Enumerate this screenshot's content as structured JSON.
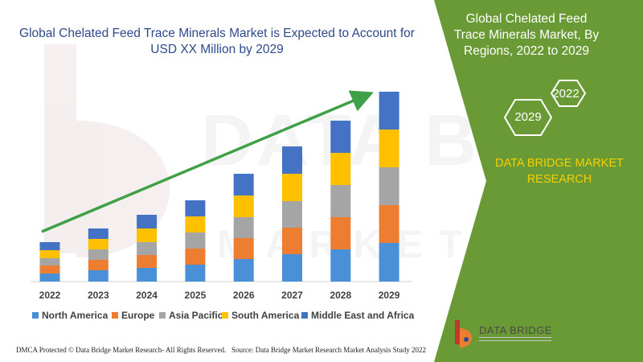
{
  "header": {
    "title": "Global Chelated Feed Trace Minerals Market is Expected to Account for USD XX Million by 2029"
  },
  "right_panel": {
    "title": "Global Chelated Feed Trace Minerals Market, By Regions, 2022 to 2029",
    "hex_labels": [
      "2022",
      "2029"
    ],
    "company": "DATA BRIDGE MARKET RESEARCH",
    "panel_color": "#6a9a36",
    "company_color": "#f5d000"
  },
  "logo": {
    "text": "DATA BRIDGE",
    "icon": "data-bridge-logo-icon"
  },
  "footer": {
    "left": "DMCA Protected © Data Bridge Market Research- All Rights Reserved.",
    "right": "Source: Data Bridge Market Research Market Analysis Study 2022"
  },
  "chart_data": {
    "type": "bar",
    "stacked": true,
    "title": "Global Chelated Feed Trace Minerals Market is Expected to Account for USD XX Million by 2029",
    "categories": [
      "2022",
      "2023",
      "2024",
      "2025",
      "2026",
      "2027",
      "2028",
      "2029"
    ],
    "series": [
      {
        "name": "North America",
        "color": "#4a90d9",
        "values": [
          10,
          14,
          17,
          21,
          28,
          34,
          40,
          48
        ]
      },
      {
        "name": "Europe",
        "color": "#ed7d31",
        "values": [
          10,
          13,
          16,
          20,
          26,
          33,
          40,
          47
        ]
      },
      {
        "name": "Asia Pacific",
        "color": "#a5a5a5",
        "values": [
          9,
          13,
          16,
          20,
          26,
          33,
          40,
          47
        ]
      },
      {
        "name": "South America",
        "color": "#ffc000",
        "values": [
          10,
          13,
          17,
          20,
          27,
          34,
          40,
          47
        ]
      },
      {
        "name": "Middle East and Africa",
        "color": "#4472c4",
        "values": [
          10,
          13,
          17,
          20,
          27,
          34,
          40,
          47
        ]
      }
    ],
    "ylim": [
      0,
      240
    ],
    "legend": "bottom",
    "grid": false,
    "trend_arrow": {
      "color": "#3fa047"
    }
  }
}
